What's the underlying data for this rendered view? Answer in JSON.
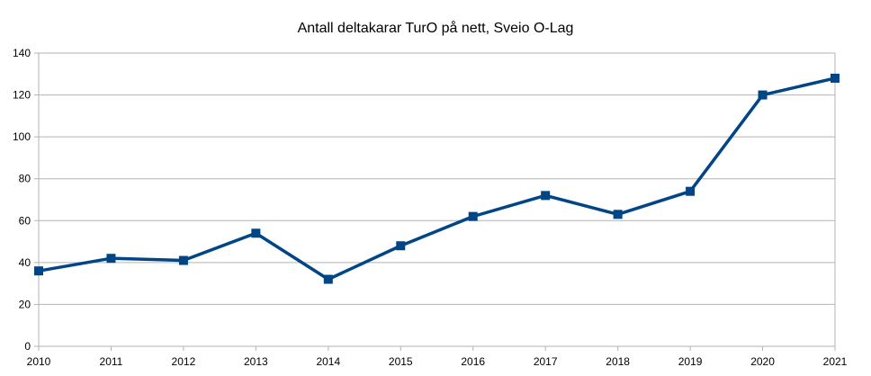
{
  "chart_data": {
    "type": "line",
    "title": "Antall deltakarar TurO på nett, Sveio O-Lag",
    "xlabel": "",
    "ylabel": "",
    "categories": [
      "2010",
      "2011",
      "2012",
      "2013",
      "2014",
      "2015",
      "2016",
      "2017",
      "2018",
      "2019",
      "2020",
      "2021"
    ],
    "series": [
      {
        "values": [
          36,
          42,
          41,
          54,
          32,
          48,
          62,
          72,
          63,
          74,
          120,
          128
        ]
      }
    ],
    "ylim": [
      0,
      140
    ],
    "yticks": [
      0,
      20,
      40,
      60,
      80,
      100,
      120,
      140
    ],
    "grid": true,
    "legend": "none",
    "colors": {
      "series": "#004586",
      "grid": "#b3b3b3",
      "axis": "#000000"
    }
  }
}
